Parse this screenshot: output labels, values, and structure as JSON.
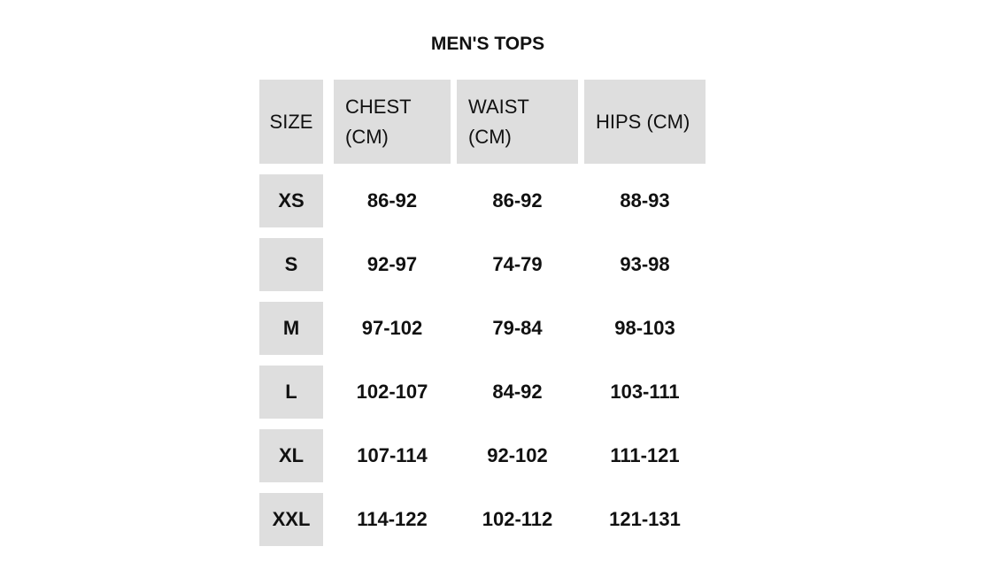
{
  "title": "MEN'S TOPS",
  "headers": [
    "SIZE",
    "CHEST (CM)",
    "WAIST (CM)",
    "HIPS (CM)"
  ],
  "rows": [
    {
      "size": "XS",
      "chest": "86-92",
      "waist": "86-92",
      "hips": "88-93"
    },
    {
      "size": "S",
      "chest": "92-97",
      "waist": "74-79",
      "hips": "93-98"
    },
    {
      "size": "M",
      "chest": "97-102",
      "waist": "79-84",
      "hips": "98-103"
    },
    {
      "size": "L",
      "chest": "102-107",
      "waist": "84-92",
      "hips": "103-111"
    },
    {
      "size": "XL",
      "chest": "107-114",
      "waist": "92-102",
      "hips": "111-121"
    },
    {
      "size": "XXL",
      "chest": "114-122",
      "waist": "102-112",
      "hips": "121-131"
    }
  ],
  "colors": {
    "header_bg": "#dedede",
    "text": "#111111"
  }
}
